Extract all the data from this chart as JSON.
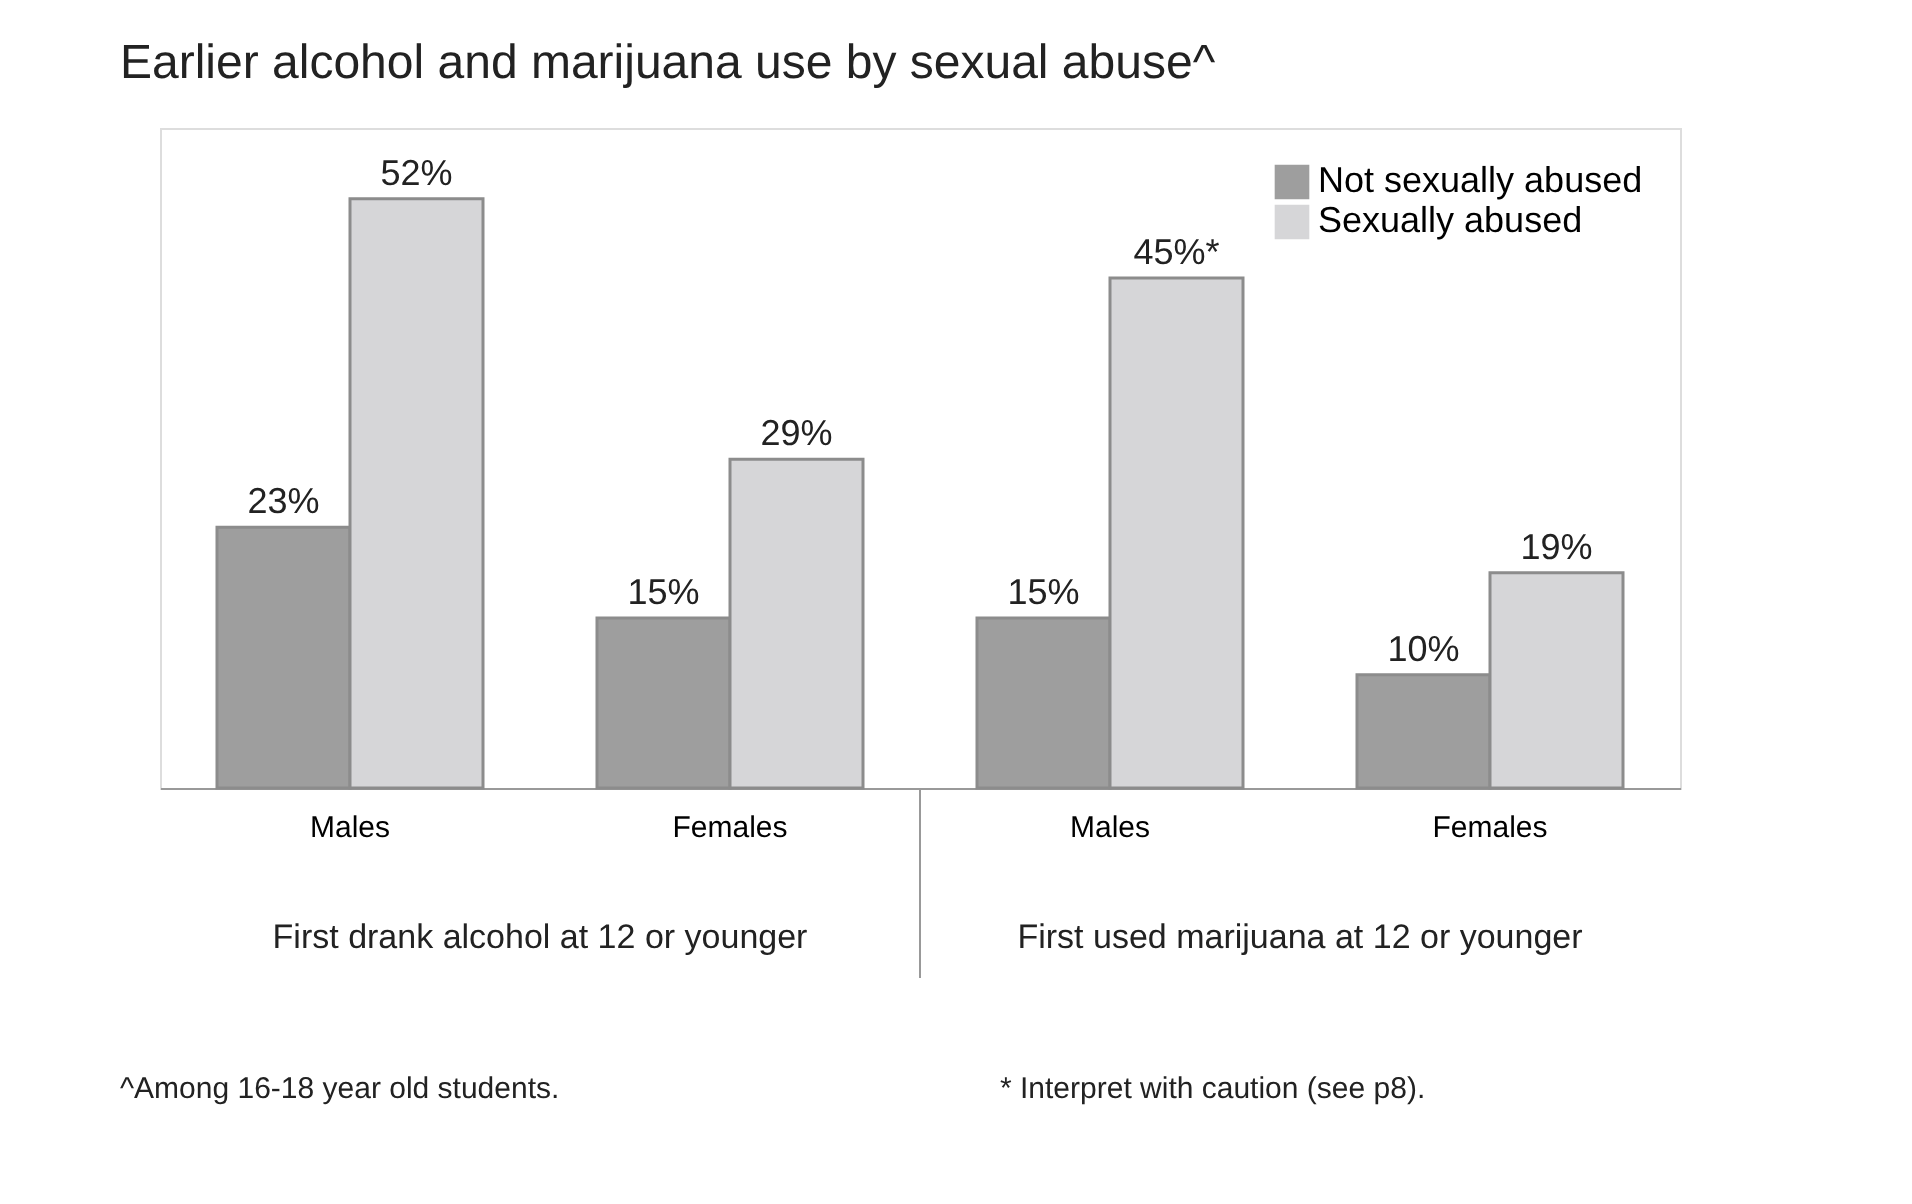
{
  "chart_data": {
    "type": "bar",
    "title": "Earlier alcohol and marijuana use by sexual abuse^",
    "categories": [
      "Males",
      "Females",
      "Males",
      "Females"
    ],
    "series": [
      {
        "name": "Not sexually abused",
        "color": "#9e9e9e",
        "values": [
          23,
          15,
          15,
          10
        ],
        "value_labels": [
          "23%",
          "15%",
          "15%",
          "10%"
        ]
      },
      {
        "name": "Sexually abused",
        "color": "#d6d6d8",
        "values": [
          52,
          29,
          45,
          19
        ],
        "value_labels": [
          "52%",
          "29%",
          "45%*",
          "19%"
        ]
      }
    ],
    "annotations": [
      "First drank alcohol at 12 or younger",
      "First used marijuana at 12 or younger",
      "^Among 16-18 year old students.",
      "* Interpret with caution (see p8)."
    ],
    "legend": "top right",
    "grid": false
  }
}
